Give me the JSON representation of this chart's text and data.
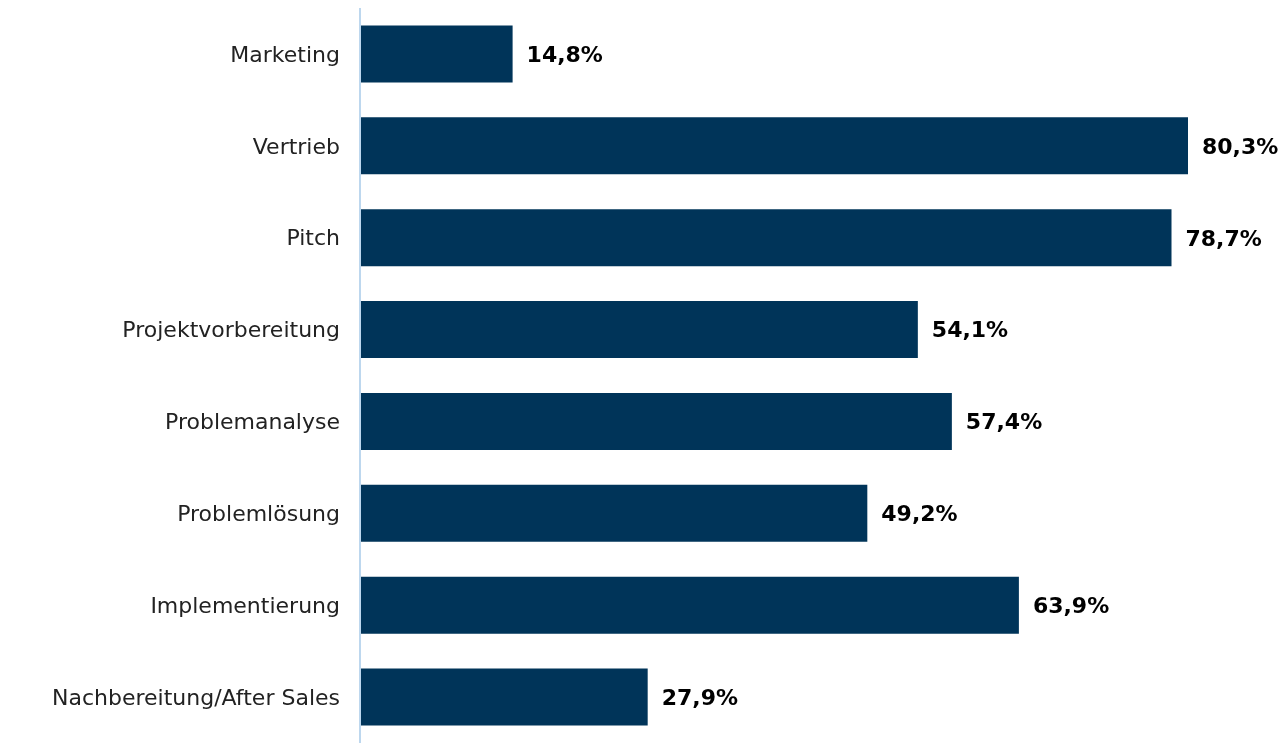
{
  "chart_data": {
    "type": "bar",
    "orientation": "horizontal",
    "categories": [
      "Marketing",
      "Vertrieb",
      "Pitch",
      "Projektvorbereitung",
      "Problemanalyse",
      "Problemlösung",
      "Implementierung",
      "Nachbereitung/After Sales"
    ],
    "values": [
      14.8,
      80.3,
      78.7,
      54.1,
      57.4,
      49.2,
      63.9,
      27.9
    ],
    "value_labels": [
      "14,8%",
      "80,3%",
      "78,7%",
      "54,1%",
      "57,4%",
      "49,2%",
      "63,9%",
      "27,9%"
    ],
    "color": "#003459"
  }
}
